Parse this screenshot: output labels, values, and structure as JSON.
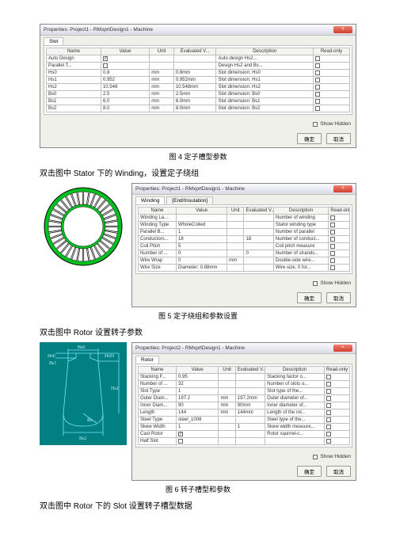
{
  "dialog1": {
    "title": "Properties: Project1 - RMxprtDesign1 - Machine",
    "tab": "Slot",
    "close": "×",
    "headers": [
      "Name",
      "Value",
      "Unit",
      "Evaluated V...",
      "Description",
      "Read-only"
    ],
    "rows": [
      {
        "n": "Auto Design",
        "v": "",
        "u": "",
        "e": "",
        "d": "Auto design Hs2...",
        "ro": false,
        "chkVal": true
      },
      {
        "n": "Parallel T...",
        "v": "",
        "u": "",
        "e": "",
        "d": "Design Hs2 and Bs...",
        "ro": false,
        "chkVal": false
      },
      {
        "n": "Hs0",
        "v": "0.8",
        "u": "mm",
        "e": "0.8mm",
        "d": "Slot dimension: Hs0",
        "ro": false
      },
      {
        "n": "Hs1",
        "v": "0.952",
        "u": "mm",
        "e": "0.952mm",
        "d": "Slot dimension: Hs1",
        "ro": false
      },
      {
        "n": "Hs2",
        "v": "10.548",
        "u": "mm",
        "e": "10.548mm",
        "d": "Slot dimension: Hs2",
        "ro": false
      },
      {
        "n": "Bs0",
        "v": "2.5",
        "u": "mm",
        "e": "2.5mm",
        "d": "Slot dimension: Bs0",
        "ro": false
      },
      {
        "n": "Bs1",
        "v": "6.0",
        "u": "mm",
        "e": "6.0mm",
        "d": "Slot dimension: Bs1",
        "ro": false
      },
      {
        "n": "Bs2",
        "v": "8.0",
        "u": "mm",
        "e": "8.0mm",
        "d": "Slot dimension: Bs2",
        "ro": false
      }
    ],
    "showHidden": "Show Hidden",
    "ok": "确定",
    "cancel": "取消"
  },
  "caption1": "图 4 定子槽型参数",
  "para1": "双击图中 Stator 下的 Winding，设置定子绕组",
  "dialog2": {
    "title": "Properties: Project1 - RMxprtDesign1 - Machine",
    "tabs": [
      "Winding",
      "[End/Insulation]"
    ],
    "close": "×",
    "headers": [
      "Name",
      "Value",
      "Unit",
      "Evaluated V...",
      "Description",
      "Read-only"
    ],
    "rows": [
      {
        "n": "Winding La...",
        "v": "",
        "u": "",
        "e": "",
        "d": "Number of winding"
      },
      {
        "n": "Winding Type",
        "v": "WholeCoiled",
        "u": "",
        "e": "",
        "d": "Stator winding type"
      },
      {
        "n": "Parallel B...",
        "v": "1",
        "u": "",
        "e": "",
        "d": "Number of parallel"
      },
      {
        "n": "Conductors...",
        "v": "18",
        "u": "",
        "e": "18",
        "d": "Number of conduct..."
      },
      {
        "n": "Coil Pitch",
        "v": "5",
        "u": "",
        "e": "",
        "d": "Coil pitch measure"
      },
      {
        "n": "Number of ...",
        "v": "0",
        "u": "",
        "e": "0",
        "d": "Number of strands..."
      },
      {
        "n": "Wire Wrap",
        "v": "0",
        "u": "mm",
        "e": "",
        "d": "Double-side wire..."
      },
      {
        "n": "Wire Size",
        "v": "Diameter: 0.88mm",
        "u": "",
        "e": "",
        "d": "Wire size, 0 for..."
      }
    ],
    "showHidden": "Show Hidden",
    "ok": "确定",
    "cancel": "取消"
  },
  "caption2": "图 5 定子绕组和参数设置",
  "para2": "双击图中 Rotor 设置转子参数",
  "dialog3": {
    "title": "Properties: Project2 - RMxprtDesign1 - Machine",
    "tab": "Rotor",
    "close": "×",
    "headers": [
      "Name",
      "Value",
      "Unit",
      "Evaluated V...",
      "Description",
      "Read-only"
    ],
    "rows": [
      {
        "n": "Stacking F...",
        "v": "0.95",
        "u": "",
        "e": "",
        "d": "Stacking factor o..."
      },
      {
        "n": "Number of ...",
        "v": "32",
        "u": "",
        "e": "",
        "d": "Number of slots o..."
      },
      {
        "n": "Slot Type",
        "v": "1",
        "u": "",
        "e": "",
        "d": "Slot type of the..."
      },
      {
        "n": "Outer Diam...",
        "v": "197.2",
        "u": "mm",
        "e": "197.2mm",
        "d": "Outer diameter of..."
      },
      {
        "n": "Inner Diam...",
        "v": "90",
        "u": "mm",
        "e": "90mm",
        "d": "Inner diameter of..."
      },
      {
        "n": "Length",
        "v": "144",
        "u": "mm",
        "e": "144mm",
        "d": "Length of the rot..."
      },
      {
        "n": "Steel Type",
        "v": "steel_1008",
        "u": "",
        "e": "",
        "d": "Steel type of the..."
      },
      {
        "n": "Skew Width",
        "v": "1",
        "u": "",
        "e": "1",
        "d": "Skew width measure..."
      },
      {
        "n": "Cast Rotor",
        "v": "",
        "u": "",
        "e": "",
        "d": "Rotor squirrel-c...",
        "chkVal": true
      },
      {
        "n": "Half Slot",
        "v": "",
        "u": "",
        "e": "",
        "d": "",
        "chkVal": false
      }
    ],
    "showHidden": "Show Hidden",
    "ok": "确定",
    "cancel": "取消"
  },
  "caption3": "图 6 转子槽型和参数",
  "para3": "双击图中 Rotor 下的 Slot 设置转子槽型数据",
  "slotLabels": {
    "Bs0": "Bs0",
    "Hs0": "Hs0",
    "Hs01": "Hs01",
    "Bs1": "Bs1",
    "Hs2": "Hs2",
    "Bs2": "Bs2",
    "Rs": "Rs"
  },
  "statorTeeth": 36
}
